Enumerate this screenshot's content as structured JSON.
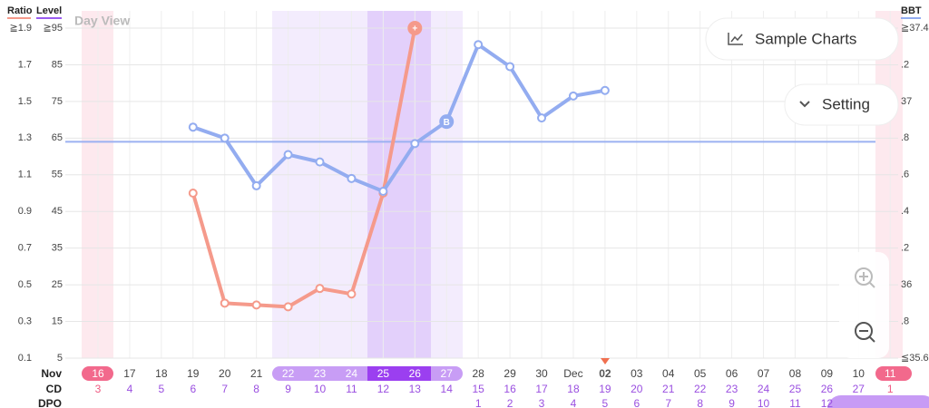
{
  "ui": {
    "day_view": "Day View",
    "sample_charts": "Sample Charts",
    "setting": "Setting"
  },
  "chart_data": {
    "type": "line",
    "axis_titles": {
      "ratio": "Ratio",
      "level": "Level",
      "bbt": "BBT"
    },
    "month_label": "Nov",
    "row_labels": {
      "cd": "CD",
      "dpo": "DPO"
    },
    "categories": [
      "16",
      "17",
      "18",
      "19",
      "20",
      "21",
      "22",
      "23",
      "24",
      "25",
      "26",
      "27",
      "28",
      "29",
      "30",
      "Dec",
      "02",
      "03",
      "04",
      "05",
      "06",
      "07",
      "08",
      "09",
      "10",
      "11"
    ],
    "cd": [
      3,
      4,
      5,
      6,
      7,
      8,
      9,
      10,
      11,
      12,
      13,
      14,
      15,
      16,
      17,
      18,
      19,
      20,
      21,
      22,
      23,
      24,
      25,
      26,
      27,
      1
    ],
    "dpo": [
      null,
      null,
      null,
      null,
      null,
      null,
      null,
      null,
      null,
      null,
      null,
      null,
      1,
      2,
      3,
      4,
      5,
      6,
      7,
      8,
      9,
      10,
      11,
      12,
      null,
      null
    ],
    "ylim": [
      0.1,
      1.9
    ],
    "yticks": [
      {
        "value": 1.9,
        "label": "≧1.9"
      },
      1.7,
      1.5,
      1.3,
      1.1,
      0.9,
      0.7,
      0.5,
      0.3,
      0.1
    ],
    "y3lim": [
      5,
      95
    ],
    "y3ticks": [
      {
        "value": 95,
        "label": "≧95"
      },
      85,
      75,
      65,
      55,
      45,
      35,
      25,
      15,
      5
    ],
    "y2lim": [
      35.6,
      37.4
    ],
    "y2ticks": [
      {
        "value": 37.4,
        "label": "≧37.4"
      },
      {
        "value": 37.2,
        "label": ".2"
      },
      37,
      {
        "value": 36.8,
        "label": ".8"
      },
      {
        "value": 36.6,
        "label": ".6"
      },
      {
        "value": 36.4,
        "label": ".4"
      },
      {
        "value": 36.2,
        "label": ".2"
      },
      36,
      {
        "value": 35.8,
        "label": ".8"
      },
      {
        "value": 35.6,
        "label": "≦35.6"
      }
    ],
    "coverline": 36.78,
    "coverline_color": "#9bb1f1",
    "grid": true,
    "series": [
      {
        "name": "Ratio",
        "color": "#f59a8b",
        "axis": "y",
        "values": [
          null,
          null,
          null,
          1.0,
          0.4,
          0.39,
          0.38,
          0.48,
          0.45,
          1.0,
          1.9,
          null,
          null,
          null,
          null,
          null,
          null,
          null,
          null,
          null,
          null,
          null,
          null,
          null,
          null,
          null
        ],
        "marker_labels": [
          null,
          null,
          null,
          null,
          null,
          null,
          null,
          null,
          null,
          null,
          "+",
          null,
          null,
          null,
          null,
          null,
          null,
          null,
          null,
          null,
          null,
          null,
          null,
          null,
          null,
          null
        ]
      },
      {
        "name": "BBT",
        "color": "#93acf0",
        "axis": "y2",
        "values": [
          null,
          null,
          null,
          36.86,
          36.8,
          36.54,
          36.71,
          36.67,
          36.58,
          36.51,
          36.77,
          36.89,
          37.31,
          37.19,
          36.91,
          37.03,
          37.06,
          null,
          null,
          null,
          null,
          null,
          null,
          null,
          null,
          null
        ],
        "marker_labels": [
          null,
          null,
          null,
          null,
          null,
          null,
          null,
          null,
          null,
          null,
          null,
          "B",
          null,
          null,
          null,
          null,
          null,
          null,
          null,
          null,
          null,
          null,
          null,
          null,
          null,
          null
        ]
      }
    ]
  }
}
